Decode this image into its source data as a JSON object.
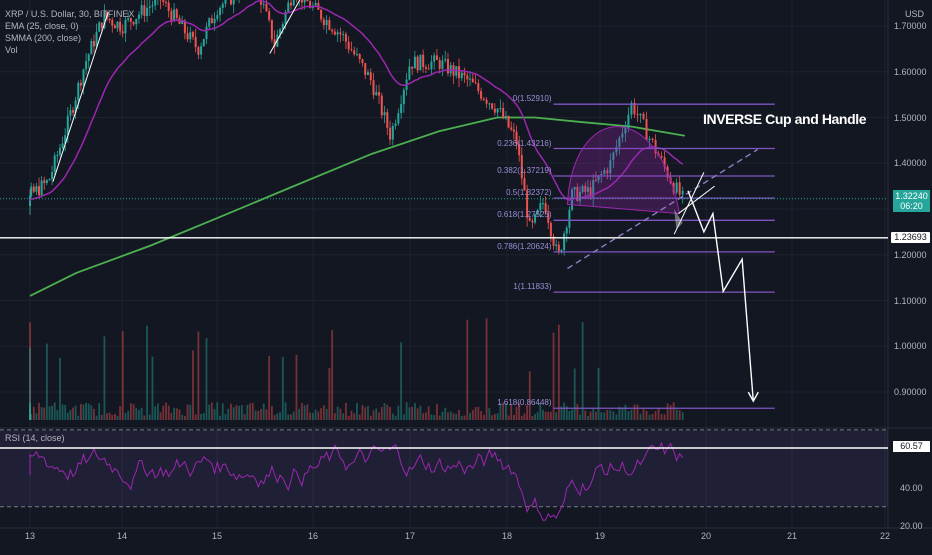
{
  "legend": {
    "symbol": "XRP / U.S. Dollar, 30, BITFINEX",
    "ema": "EMA (25, close, 0)",
    "smma": "SMMA (200, close)",
    "vol": "Vol"
  },
  "rsi_label": "RSI (14, close)",
  "axis_unit": "USD",
  "annotation": "INVERSE Cup and Handle",
  "last_price": "1.32240",
  "countdown": "06:20",
  "level_price": "1.23693",
  "rsi_value": "60.57",
  "colors": {
    "background": "#131722",
    "ema": "#9c27b0",
    "smma": "#4caf50",
    "up": "#26a69a",
    "down": "#ef5350",
    "fib": "#7e57c2",
    "rsi": "#9c27b0"
  },
  "chart_data": {
    "type": "candlestick",
    "title": "XRP / U.S. Dollar, 30, BITFINEX",
    "y_axis": {
      "unit": "USD",
      "ticks": [
        "1.70000",
        "1.60000",
        "1.50000",
        "1.40000",
        "1.30000",
        "1.20000",
        "1.10000",
        "1.00000",
        "0.90000"
      ]
    },
    "x_axis": {
      "ticks": [
        "13",
        "14",
        "15",
        "16",
        "17",
        "18",
        "19",
        "20",
        "21",
        "22"
      ]
    },
    "price_path": [
      [
        "13",
        1.33
      ],
      [
        "13.2",
        1.36
      ],
      [
        "13.4",
        1.48
      ],
      [
        "13.6",
        1.62
      ],
      [
        "13.8",
        1.72
      ],
      [
        "14",
        1.7
      ],
      [
        "14.4",
        1.76
      ],
      [
        "14.8",
        1.65
      ],
      [
        "15",
        1.74
      ],
      [
        "15.4",
        1.8
      ],
      [
        "15.6",
        1.66
      ],
      [
        "15.8",
        1.78
      ],
      [
        "16",
        1.74
      ],
      [
        "16.3",
        1.68
      ],
      [
        "16.6",
        1.58
      ],
      [
        "16.8",
        1.46
      ],
      [
        "17",
        1.62
      ],
      [
        "17.3",
        1.62
      ],
      [
        "17.6",
        1.58
      ],
      [
        "17.9",
        1.52
      ],
      [
        "18.1",
        1.45
      ],
      [
        "18.25",
        1.25
      ],
      [
        "18.4",
        1.32
      ],
      [
        "18.55",
        1.19
      ],
      [
        "18.7",
        1.33
      ],
      [
        "18.9",
        1.34
      ],
      [
        "19.1",
        1.4
      ],
      [
        "19.3",
        1.53
      ],
      [
        "19.5",
        1.44
      ],
      [
        "19.7",
        1.35
      ],
      [
        "19.78",
        1.3224
      ]
    ],
    "fib_levels": [
      {
        "label": "0(1.52910)",
        "price": 1.5291
      },
      {
        "label": "0.236(1.43216)",
        "price": 1.43216
      },
      {
        "label": "0.382(1.37219)",
        "price": 1.37219
      },
      {
        "label": "0.5(1.32372)",
        "price": 1.32372
      },
      {
        "label": "0.618(1.27525)",
        "price": 1.27525
      },
      {
        "label": "0.786(1.20624)",
        "price": 1.20624
      },
      {
        "label": "1(1.11833)",
        "price": 1.11833
      },
      {
        "label": "1.618(0.86448)",
        "price": 0.86448
      }
    ],
    "horizontal_level": 1.23693,
    "last_price": 1.3224,
    "rsi": {
      "ticks": [
        "60.57",
        "40.00",
        "20.00"
      ],
      "last": 60.57,
      "upper": 70,
      "lower": 30
    }
  }
}
